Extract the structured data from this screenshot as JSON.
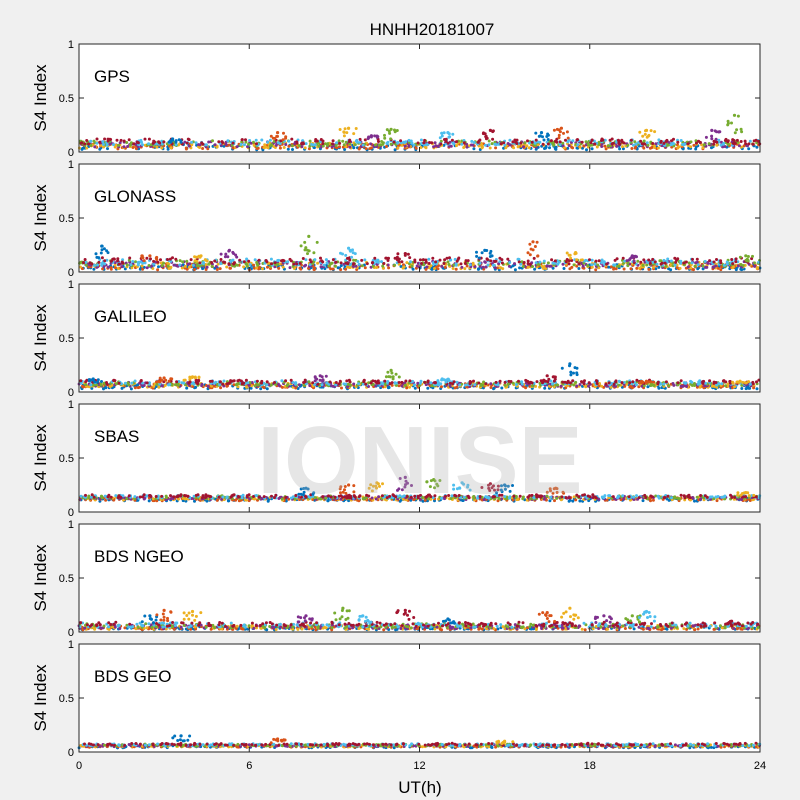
{
  "chart_data": {
    "type": "scatter",
    "title": "HNHH20181007",
    "xlabel": "UT(h)",
    "ylabel": "S4 Index",
    "xlim": [
      0,
      24
    ],
    "ylim": [
      0,
      1
    ],
    "xticks": [
      0,
      6,
      12,
      18,
      24
    ],
    "yticks": [
      0,
      0.5,
      1
    ],
    "grid": false,
    "watermark": "IONISE",
    "series_colors": [
      "#0072BD",
      "#D95319",
      "#EDB120",
      "#7E2F8E",
      "#77AC30",
      "#4DBEEE",
      "#A2142F"
    ],
    "panels": [
      {
        "label": "GPS",
        "baseline": 0.07,
        "spread": 0.025,
        "peaks": [
          [
            3.3,
            0.12
          ],
          [
            7.0,
            0.18
          ],
          [
            9.5,
            0.22
          ],
          [
            10.3,
            0.15
          ],
          [
            11.0,
            0.21
          ],
          [
            13.0,
            0.18
          ],
          [
            14.5,
            0.2
          ],
          [
            16.3,
            0.18
          ],
          [
            17.0,
            0.22
          ],
          [
            20.0,
            0.2
          ],
          [
            22.3,
            0.2
          ],
          [
            23.1,
            0.34
          ]
        ]
      },
      {
        "label": "GLONASS",
        "baseline": 0.07,
        "spread": 0.03,
        "peaks": [
          [
            0.8,
            0.24
          ],
          [
            2.5,
            0.15
          ],
          [
            4.3,
            0.15
          ],
          [
            5.3,
            0.2
          ],
          [
            8.1,
            0.33
          ],
          [
            9.5,
            0.22
          ],
          [
            11.5,
            0.17
          ],
          [
            14.3,
            0.2
          ],
          [
            16.0,
            0.28
          ],
          [
            17.5,
            0.18
          ],
          [
            19.5,
            0.15
          ],
          [
            23.5,
            0.15
          ]
        ]
      },
      {
        "label": "GALILEO",
        "baseline": 0.07,
        "spread": 0.02,
        "peaks": [
          [
            0.5,
            0.12
          ],
          [
            3.0,
            0.13
          ],
          [
            4.0,
            0.14
          ],
          [
            8.5,
            0.15
          ],
          [
            11.0,
            0.2
          ],
          [
            12.8,
            0.12
          ],
          [
            16.5,
            0.15
          ],
          [
            17.3,
            0.26
          ],
          [
            20.0,
            0.1
          ],
          [
            23.3,
            0.1
          ]
        ]
      },
      {
        "label": "SBAS",
        "baseline": 0.13,
        "spread": 0.015,
        "peaks": [
          [
            8.0,
            0.22
          ],
          [
            9.5,
            0.25
          ],
          [
            10.5,
            0.27
          ],
          [
            11.5,
            0.32
          ],
          [
            12.5,
            0.3
          ],
          [
            13.5,
            0.27
          ],
          [
            14.5,
            0.26
          ],
          [
            15.0,
            0.25
          ],
          [
            16.8,
            0.22
          ],
          [
            23.5,
            0.18
          ]
        ]
      },
      {
        "label": "BDS NGEO",
        "baseline": 0.05,
        "spread": 0.02,
        "peaks": [
          [
            2.5,
            0.15
          ],
          [
            3.0,
            0.2
          ],
          [
            4.0,
            0.19
          ],
          [
            8.0,
            0.15
          ],
          [
            9.3,
            0.22
          ],
          [
            10.0,
            0.15
          ],
          [
            11.5,
            0.2
          ],
          [
            13.0,
            0.12
          ],
          [
            16.5,
            0.18
          ],
          [
            17.3,
            0.22
          ],
          [
            18.5,
            0.15
          ],
          [
            19.5,
            0.15
          ],
          [
            20.0,
            0.19
          ],
          [
            23.0,
            0.1
          ]
        ]
      },
      {
        "label": "BDS GEO",
        "baseline": 0.06,
        "spread": 0.01,
        "peaks": [
          [
            3.6,
            0.15
          ],
          [
            7.0,
            0.12
          ],
          [
            15.0,
            0.1
          ]
        ]
      }
    ]
  }
}
